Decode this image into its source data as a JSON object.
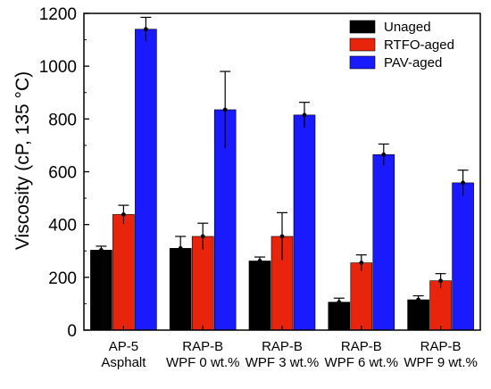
{
  "chart_data": {
    "type": "bar",
    "title": "",
    "xlabel": "",
    "ylabel": "Viscosity (cP, 135 °C)",
    "ylim": [
      0,
      1200
    ],
    "yticks": [
      0,
      200,
      400,
      600,
      800,
      1000,
      1200
    ],
    "grid": false,
    "legend_position": "top-right",
    "categories": [
      [
        "AP-5",
        "Asphalt"
      ],
      [
        "RAP-B",
        "WPF 0 wt.%"
      ],
      [
        "RAP-B",
        "WPF 3 wt.%"
      ],
      [
        "RAP-B",
        "WPF 6 wt.%"
      ],
      [
        "RAP-B",
        "WPF 9 wt.%"
      ]
    ],
    "series": [
      {
        "name": "Unaged",
        "color": "#000000",
        "values": [
          303,
          310,
          262,
          106,
          115
        ],
        "errors": [
          15,
          45,
          15,
          15,
          15
        ]
      },
      {
        "name": "RTFO-aged",
        "color": "#e8250c",
        "values": [
          438,
          355,
          355,
          255,
          187
        ],
        "errors": [
          35,
          50,
          90,
          30,
          27
        ]
      },
      {
        "name": "PAV-aged",
        "color": "#1a1aff",
        "values": [
          1140,
          835,
          815,
          665,
          558
        ],
        "errors": [
          45,
          145,
          48,
          40,
          48
        ]
      }
    ]
  }
}
